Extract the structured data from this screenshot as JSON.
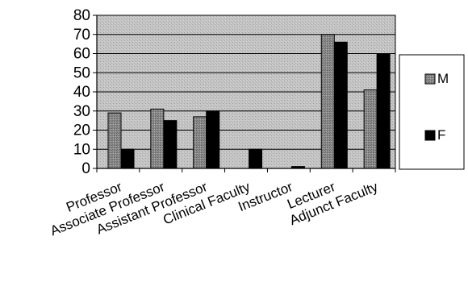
{
  "chart_data": {
    "type": "bar",
    "categories": [
      "Professor",
      "Associate Professor",
      "Assistant Professor",
      "Clinical Faculty",
      "Instructor",
      "Lecturer",
      "Adjunct Faculty"
    ],
    "series": [
      {
        "name": "M",
        "values": [
          29,
          31,
          27,
          0,
          0,
          70,
          41
        ]
      },
      {
        "name": "F",
        "values": [
          10,
          25,
          30,
          10,
          1,
          66,
          60
        ]
      }
    ],
    "ylim": [
      0,
      80
    ],
    "yticks": [
      0,
      10,
      20,
      30,
      40,
      50,
      60,
      70,
      80
    ],
    "grid": true,
    "legend": "right",
    "colors": {
      "plot_bg": "#c0c0c0",
      "M": "#8c8c8c",
      "F": "#000000"
    }
  }
}
